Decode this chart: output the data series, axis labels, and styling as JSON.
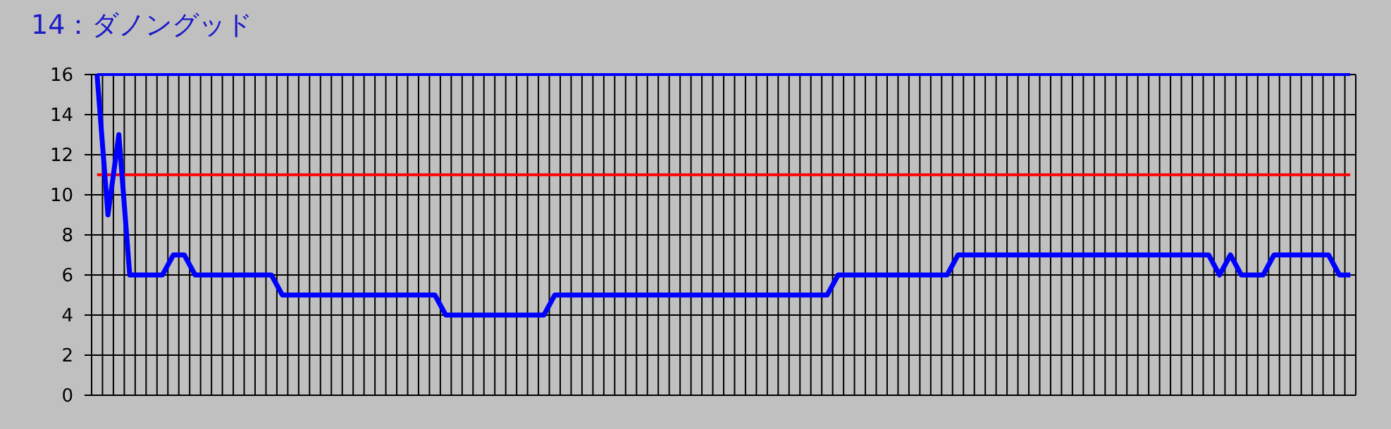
{
  "chart_data": {
    "type": "line",
    "title": "14：ダノングッド",
    "categories": [
      null,
      null,
      null,
      null,
      null,
      null,
      null,
      null,
      null,
      null,
      null,
      null,
      null,
      null,
      null,
      null,
      null,
      null,
      null,
      null,
      null,
      null,
      null,
      null,
      null,
      null,
      null,
      null,
      null,
      null,
      null,
      null,
      null,
      null,
      null,
      null,
      null,
      null,
      null,
      null,
      null,
      null,
      null,
      null,
      null,
      null,
      null,
      null,
      null,
      null,
      null,
      null,
      null,
      null,
      null,
      null,
      null,
      null,
      null,
      null,
      null,
      null,
      null,
      null,
      null,
      null,
      null,
      null,
      null,
      null,
      null,
      null,
      null,
      null,
      null,
      null,
      null,
      null,
      null,
      null,
      null,
      null,
      null,
      null,
      null,
      null,
      null,
      null,
      null,
      null,
      null,
      null,
      null,
      null,
      null,
      null,
      null,
      null,
      null,
      null,
      null,
      null,
      null,
      null,
      null,
      null,
      null,
      null,
      null,
      null,
      null,
      null,
      null,
      null,
      null,
      null
    ],
    "series": [
      {
        "color": "#0000ff",
        "values": [
          16,
          16,
          16,
          16,
          16,
          16,
          16,
          16,
          16,
          16,
          16,
          16,
          16,
          16,
          16,
          16,
          16,
          16,
          16,
          16,
          16,
          16,
          16,
          16,
          16,
          16,
          16,
          16,
          16,
          16,
          16,
          16,
          16,
          16,
          16,
          16,
          16,
          16,
          16,
          16,
          16,
          16,
          16,
          16,
          16,
          16,
          16,
          16,
          16,
          16,
          16,
          16,
          16,
          16,
          16,
          16,
          16,
          16,
          16,
          16,
          16,
          16,
          16,
          16,
          16,
          16,
          16,
          16,
          16,
          16,
          16,
          16,
          16,
          16,
          16,
          16,
          16,
          16,
          16,
          16,
          16,
          16,
          16,
          16,
          16,
          16,
          16,
          16,
          16,
          16,
          16,
          16,
          16,
          16,
          16,
          16,
          16,
          16,
          16,
          16,
          16,
          16,
          16,
          16,
          16,
          16,
          16,
          16,
          16,
          16,
          16,
          16,
          16,
          16,
          16,
          16
        ]
      },
      {
        "color": "#ff0000",
        "values": [
          11,
          11,
          11,
          11,
          11,
          11,
          11,
          11,
          11,
          11,
          11,
          11,
          11,
          11,
          11,
          11,
          11,
          11,
          11,
          11,
          11,
          11,
          11,
          11,
          11,
          11,
          11,
          11,
          11,
          11,
          11,
          11,
          11,
          11,
          11,
          11,
          11,
          11,
          11,
          11,
          11,
          11,
          11,
          11,
          11,
          11,
          11,
          11,
          11,
          11,
          11,
          11,
          11,
          11,
          11,
          11,
          11,
          11,
          11,
          11,
          11,
          11,
          11,
          11,
          11,
          11,
          11,
          11,
          11,
          11,
          11,
          11,
          11,
          11,
          11,
          11,
          11,
          11,
          11,
          11,
          11,
          11,
          11,
          11,
          11,
          11,
          11,
          11,
          11,
          11,
          11,
          11,
          11,
          11,
          11,
          11,
          11,
          11,
          11,
          11,
          11,
          11,
          11,
          11,
          11,
          11,
          11,
          11,
          11,
          11,
          11,
          11,
          11,
          11,
          11,
          11
        ]
      },
      {
        "color": "#0000ff",
        "values": [
          16,
          9,
          13,
          6,
          6,
          6,
          6,
          7,
          7,
          6,
          6,
          6,
          6,
          6,
          6,
          6,
          6,
          5,
          5,
          5,
          5,
          5,
          5,
          5,
          5,
          5,
          5,
          5,
          5,
          5,
          5,
          5,
          4,
          4,
          4,
          4,
          4,
          4,
          4,
          4,
          4,
          4,
          5,
          5,
          5,
          5,
          5,
          5,
          5,
          5,
          5,
          5,
          5,
          5,
          5,
          5,
          5,
          5,
          5,
          5,
          5,
          5,
          5,
          5,
          5,
          5,
          5,
          5,
          6,
          6,
          6,
          6,
          6,
          6,
          6,
          6,
          6,
          6,
          6,
          7,
          7,
          7,
          7,
          7,
          7,
          7,
          7,
          7,
          7,
          7,
          7,
          7,
          7,
          7,
          7,
          7,
          7,
          7,
          7,
          7,
          7,
          7,
          7,
          6,
          7,
          6,
          6,
          6,
          7,
          7,
          7,
          7,
          7,
          7,
          6,
          6
        ]
      }
    ],
    "ylim": [
      0,
      16
    ],
    "yticks": [
      0,
      2,
      4,
      6,
      8,
      10,
      12,
      14,
      16
    ],
    "grid": true
  }
}
